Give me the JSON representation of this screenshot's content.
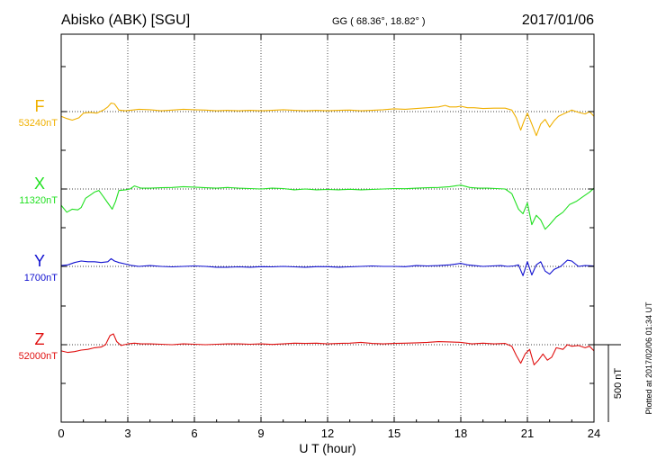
{
  "header": {
    "station": "Abisko (ABK)  [SGU]",
    "coords": "GG ( 68.36°,  18.82° )",
    "date": "2017/01/06"
  },
  "plotted_note": "Plotted at 2017/02/06 01:34 UT",
  "scale_label": "500 nT",
  "colors": {
    "F": "#f0b000",
    "X": "#22e022",
    "Y": "#1010d0",
    "Z": "#e01010",
    "axis": "#000000",
    "grid": "#000000"
  },
  "chart_data": {
    "type": "line",
    "xlabel": "U T (hour)",
    "ylabel": "",
    "xlim": [
      0,
      24
    ],
    "xticks": [
      0,
      3,
      6,
      9,
      12,
      15,
      18,
      21,
      24
    ],
    "xtick_labels": [
      "0",
      "3",
      "6",
      "9",
      "12",
      "15",
      "18",
      "21",
      "24"
    ],
    "scale_nT": 500,
    "grid": true,
    "series": [
      {
        "name": "F",
        "baseline_label": "53240nT",
        "baseline_nT": 53240,
        "color": "#f0b000",
        "points": [
          [
            0,
            -30
          ],
          [
            0.25,
            -45
          ],
          [
            0.5,
            -55
          ],
          [
            0.8,
            -40
          ],
          [
            1.0,
            -10
          ],
          [
            1.3,
            -5
          ],
          [
            1.6,
            -10
          ],
          [
            1.9,
            10
          ],
          [
            2.1,
            30
          ],
          [
            2.25,
            55
          ],
          [
            2.4,
            50
          ],
          [
            2.6,
            10
          ],
          [
            2.9,
            5
          ],
          [
            3.2,
            10
          ],
          [
            3.5,
            15
          ],
          [
            4.0,
            12
          ],
          [
            4.5,
            5
          ],
          [
            5.0,
            10
          ],
          [
            5.5,
            15
          ],
          [
            6.0,
            12
          ],
          [
            6.5,
            10
          ],
          [
            7.0,
            5
          ],
          [
            7.5,
            8
          ],
          [
            8.0,
            5
          ],
          [
            8.5,
            8
          ],
          [
            9.0,
            5
          ],
          [
            9.5,
            8
          ],
          [
            10.0,
            12
          ],
          [
            10.5,
            8
          ],
          [
            11.0,
            5
          ],
          [
            11.5,
            8
          ],
          [
            12.0,
            5
          ],
          [
            12.5,
            8
          ],
          [
            13.0,
            10
          ],
          [
            13.5,
            5
          ],
          [
            14.0,
            8
          ],
          [
            14.5,
            12
          ],
          [
            15.0,
            18
          ],
          [
            15.5,
            15
          ],
          [
            16.0,
            20
          ],
          [
            16.5,
            25
          ],
          [
            17.0,
            30
          ],
          [
            17.3,
            40
          ],
          [
            17.5,
            30
          ],
          [
            17.8,
            30
          ],
          [
            18.0,
            35
          ],
          [
            18.3,
            25
          ],
          [
            18.6,
            25
          ],
          [
            19.0,
            20
          ],
          [
            19.5,
            22
          ],
          [
            20.0,
            22
          ],
          [
            20.3,
            10
          ],
          [
            20.5,
            -40
          ],
          [
            20.7,
            -120
          ],
          [
            20.85,
            -60
          ],
          [
            21.0,
            -10
          ],
          [
            21.2,
            -80
          ],
          [
            21.4,
            -155
          ],
          [
            21.6,
            -80
          ],
          [
            21.8,
            -50
          ],
          [
            22.0,
            -100
          ],
          [
            22.2,
            -60
          ],
          [
            22.4,
            -30
          ],
          [
            22.7,
            -10
          ],
          [
            23.0,
            10
          ],
          [
            23.3,
            -5
          ],
          [
            23.6,
            -15
          ],
          [
            23.8,
            0
          ],
          [
            24.0,
            -30
          ]
        ]
      },
      {
        "name": "X",
        "baseline_label": "11320nT",
        "baseline_nT": 11320,
        "color": "#22e022",
        "points": [
          [
            0,
            -105
          ],
          [
            0.25,
            -150
          ],
          [
            0.5,
            -130
          ],
          [
            0.75,
            -135
          ],
          [
            0.9,
            -120
          ],
          [
            1.1,
            -60
          ],
          [
            1.3,
            -40
          ],
          [
            1.5,
            -20
          ],
          [
            1.7,
            -10
          ],
          [
            1.9,
            -50
          ],
          [
            2.1,
            -90
          ],
          [
            2.3,
            -130
          ],
          [
            2.45,
            -80
          ],
          [
            2.6,
            -10
          ],
          [
            2.9,
            -5
          ],
          [
            3.1,
            0
          ],
          [
            3.3,
            20
          ],
          [
            3.6,
            5
          ],
          [
            4.0,
            5
          ],
          [
            4.5,
            8
          ],
          [
            5.0,
            10
          ],
          [
            5.5,
            15
          ],
          [
            6.0,
            12
          ],
          [
            6.5,
            8
          ],
          [
            7.0,
            5
          ],
          [
            7.5,
            10
          ],
          [
            8.0,
            5
          ],
          [
            8.5,
            3
          ],
          [
            9.0,
            0
          ],
          [
            9.5,
            5
          ],
          [
            10.0,
            3
          ],
          [
            10.5,
            -5
          ],
          [
            11.0,
            0
          ],
          [
            11.5,
            -5
          ],
          [
            12.0,
            -3
          ],
          [
            12.5,
            -5
          ],
          [
            13.0,
            -2
          ],
          [
            13.5,
            -5
          ],
          [
            14.0,
            -3
          ],
          [
            14.5,
            0
          ],
          [
            15.0,
            3
          ],
          [
            15.5,
            2
          ],
          [
            16.0,
            5
          ],
          [
            16.5,
            8
          ],
          [
            17.0,
            10
          ],
          [
            17.5,
            15
          ],
          [
            18.0,
            25
          ],
          [
            18.4,
            10
          ],
          [
            18.8,
            5
          ],
          [
            19.2,
            5
          ],
          [
            19.6,
            3
          ],
          [
            20.0,
            0
          ],
          [
            20.3,
            -30
          ],
          [
            20.6,
            -130
          ],
          [
            20.8,
            -160
          ],
          [
            21.0,
            -90
          ],
          [
            21.2,
            -230
          ],
          [
            21.4,
            -170
          ],
          [
            21.6,
            -200
          ],
          [
            21.8,
            -260
          ],
          [
            22.0,
            -230
          ],
          [
            22.3,
            -180
          ],
          [
            22.6,
            -150
          ],
          [
            22.9,
            -100
          ],
          [
            23.2,
            -80
          ],
          [
            23.5,
            -50
          ],
          [
            23.8,
            -20
          ],
          [
            24.0,
            5
          ]
        ]
      },
      {
        "name": "Y",
        "baseline_label": "1700nT",
        "baseline_nT": 1700,
        "color": "#1010d0",
        "points": [
          [
            0,
            5
          ],
          [
            0.3,
            10
          ],
          [
            0.6,
            25
          ],
          [
            0.9,
            35
          ],
          [
            1.2,
            30
          ],
          [
            1.5,
            30
          ],
          [
            1.8,
            25
          ],
          [
            2.1,
            30
          ],
          [
            2.25,
            50
          ],
          [
            2.4,
            35
          ],
          [
            2.6,
            25
          ],
          [
            2.9,
            15
          ],
          [
            3.2,
            5
          ],
          [
            3.5,
            0
          ],
          [
            4.0,
            5
          ],
          [
            4.5,
            0
          ],
          [
            5.0,
            -3
          ],
          [
            5.5,
            0
          ],
          [
            6.0,
            3
          ],
          [
            6.5,
            0
          ],
          [
            7.0,
            -5
          ],
          [
            7.5,
            -5
          ],
          [
            8.0,
            -3
          ],
          [
            8.5,
            -5
          ],
          [
            9.0,
            -2
          ],
          [
            9.5,
            -3
          ],
          [
            10.0,
            0
          ],
          [
            10.5,
            -3
          ],
          [
            11.0,
            -5
          ],
          [
            11.5,
            -2
          ],
          [
            12.0,
            -2
          ],
          [
            12.5,
            -5
          ],
          [
            13.0,
            -3
          ],
          [
            13.5,
            0
          ],
          [
            14.0,
            3
          ],
          [
            14.5,
            0
          ],
          [
            15.0,
            0
          ],
          [
            15.5,
            -2
          ],
          [
            16.0,
            5
          ],
          [
            16.5,
            3
          ],
          [
            17.0,
            5
          ],
          [
            17.5,
            10
          ],
          [
            18.0,
            20
          ],
          [
            18.3,
            10
          ],
          [
            18.6,
            5
          ],
          [
            19.0,
            0
          ],
          [
            19.4,
            3
          ],
          [
            19.8,
            5
          ],
          [
            20.1,
            0
          ],
          [
            20.4,
            3
          ],
          [
            20.6,
            10
          ],
          [
            20.8,
            -60
          ],
          [
            21.0,
            30
          ],
          [
            21.2,
            -55
          ],
          [
            21.4,
            10
          ],
          [
            21.6,
            30
          ],
          [
            21.8,
            -30
          ],
          [
            22.0,
            -50
          ],
          [
            22.2,
            -20
          ],
          [
            22.5,
            0
          ],
          [
            22.8,
            40
          ],
          [
            23.0,
            35
          ],
          [
            23.3,
            0
          ],
          [
            23.6,
            5
          ],
          [
            24.0,
            3
          ]
        ]
      },
      {
        "name": "Z",
        "baseline_label": "52000nT",
        "baseline_nT": 52000,
        "color": "#e01010",
        "points": [
          [
            0,
            -40
          ],
          [
            0.3,
            -50
          ],
          [
            0.6,
            -45
          ],
          [
            0.9,
            -35
          ],
          [
            1.2,
            -30
          ],
          [
            1.5,
            -20
          ],
          [
            1.8,
            -15
          ],
          [
            2.0,
            0
          ],
          [
            2.1,
            30
          ],
          [
            2.2,
            60
          ],
          [
            2.35,
            70
          ],
          [
            2.5,
            20
          ],
          [
            2.7,
            -5
          ],
          [
            3.0,
            5
          ],
          [
            3.3,
            10
          ],
          [
            3.6,
            5
          ],
          [
            4.0,
            5
          ],
          [
            4.5,
            3
          ],
          [
            5.0,
            0
          ],
          [
            5.5,
            5
          ],
          [
            6.0,
            3
          ],
          [
            6.5,
            0
          ],
          [
            7.0,
            3
          ],
          [
            7.5,
            5
          ],
          [
            8.0,
            5
          ],
          [
            8.5,
            3
          ],
          [
            9.0,
            5
          ],
          [
            9.5,
            2
          ],
          [
            10.0,
            5
          ],
          [
            10.5,
            10
          ],
          [
            11.0,
            8
          ],
          [
            11.5,
            10
          ],
          [
            12.0,
            5
          ],
          [
            12.5,
            8
          ],
          [
            13.0,
            10
          ],
          [
            13.5,
            15
          ],
          [
            14.0,
            8
          ],
          [
            14.5,
            5
          ],
          [
            15.0,
            8
          ],
          [
            15.5,
            10
          ],
          [
            16.0,
            12
          ],
          [
            16.5,
            15
          ],
          [
            17.0,
            20
          ],
          [
            17.5,
            18
          ],
          [
            18.0,
            15
          ],
          [
            18.5,
            5
          ],
          [
            19.0,
            10
          ],
          [
            19.5,
            5
          ],
          [
            20.0,
            8
          ],
          [
            20.3,
            -10
          ],
          [
            20.5,
            -70
          ],
          [
            20.7,
            -120
          ],
          [
            20.9,
            -60
          ],
          [
            21.1,
            -30
          ],
          [
            21.3,
            -130
          ],
          [
            21.5,
            -100
          ],
          [
            21.7,
            -60
          ],
          [
            21.9,
            -100
          ],
          [
            22.1,
            -80
          ],
          [
            22.3,
            -20
          ],
          [
            22.6,
            -30
          ],
          [
            22.8,
            0
          ],
          [
            23.0,
            -10
          ],
          [
            23.3,
            -5
          ],
          [
            23.6,
            -20
          ],
          [
            23.8,
            -10
          ],
          [
            24.0,
            -40
          ]
        ]
      }
    ]
  }
}
